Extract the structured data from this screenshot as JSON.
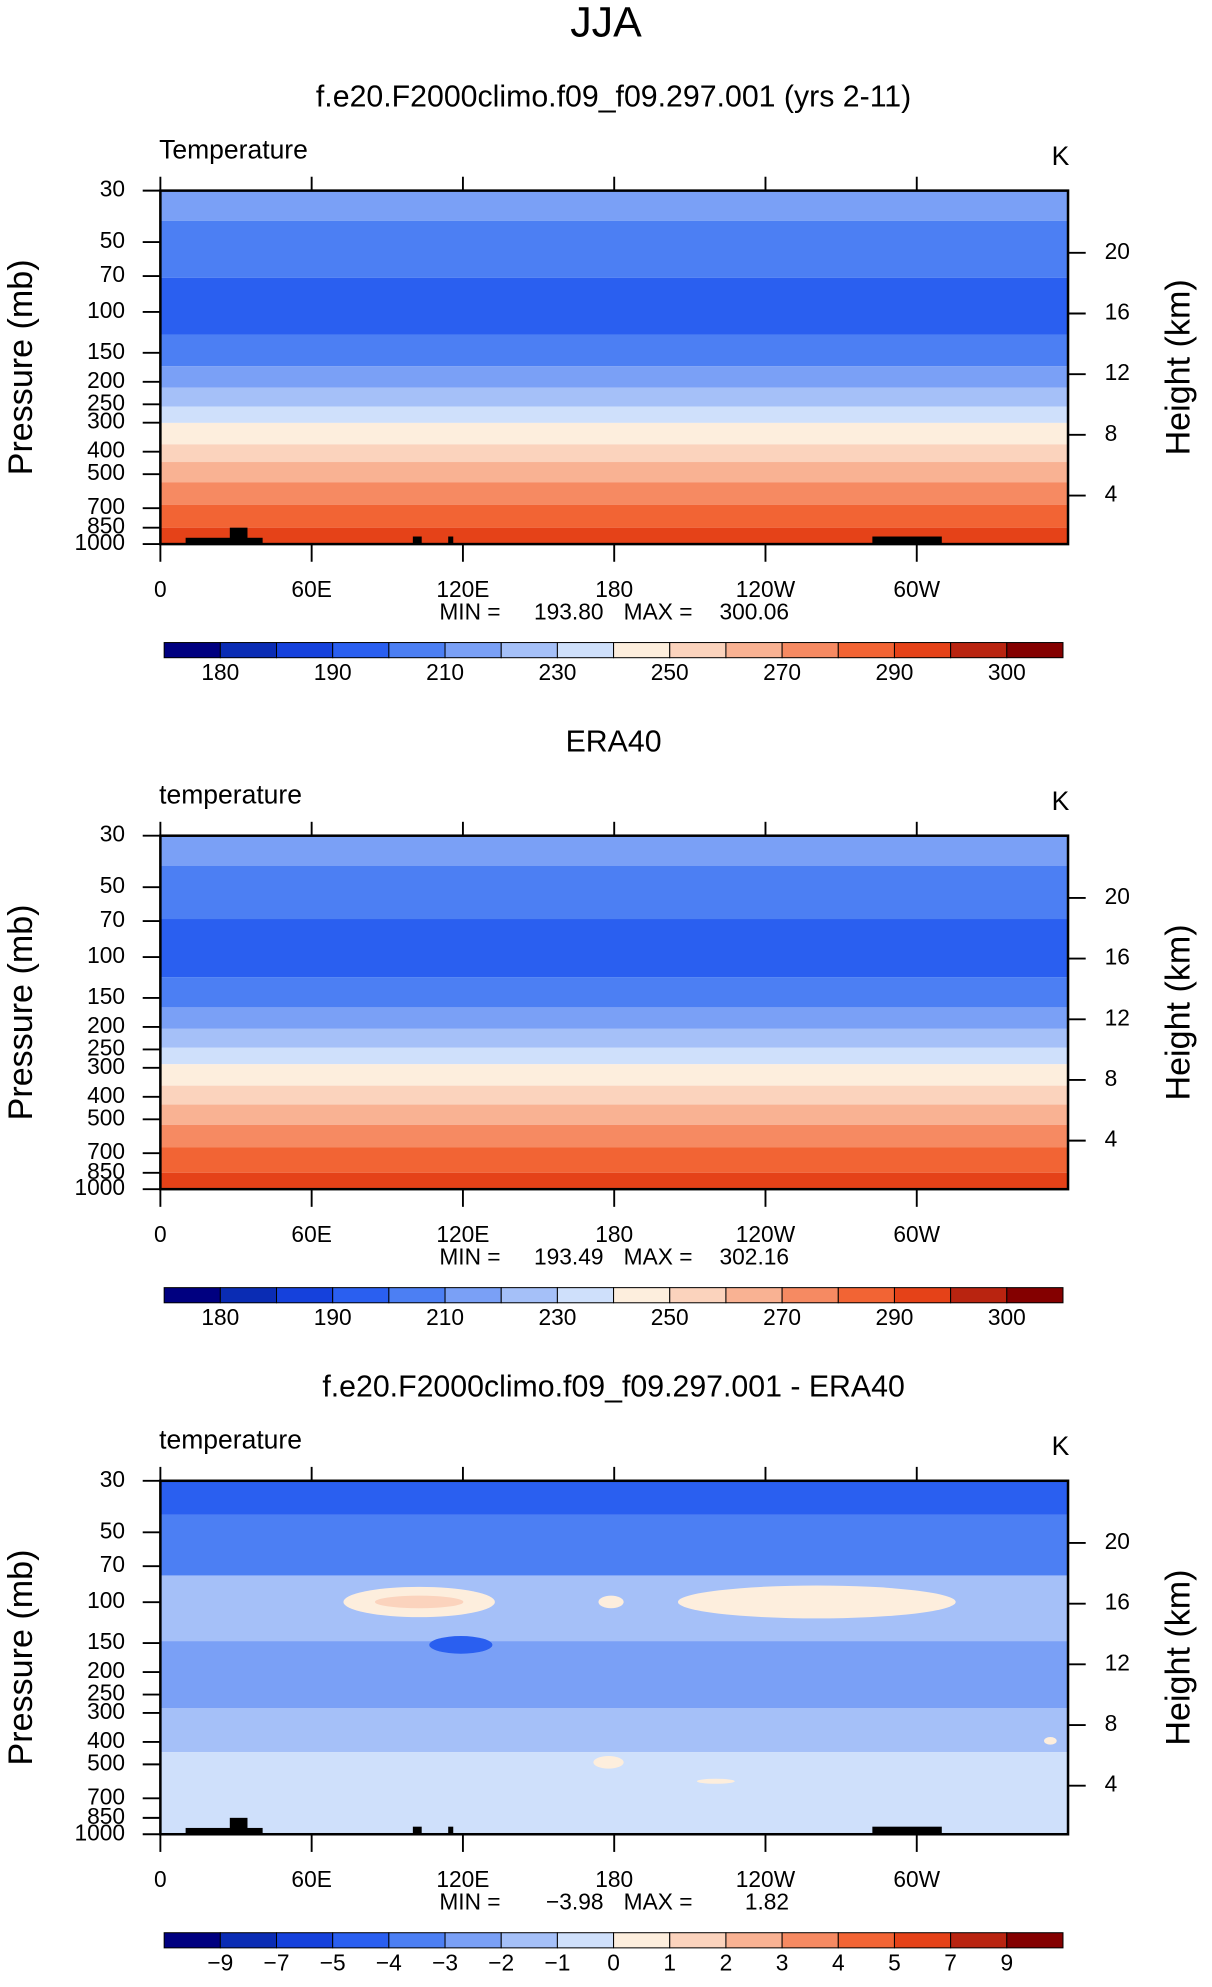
{
  "title": "JJA",
  "colors": [
    "#000080",
    "#0a2cb4",
    "#1541dc",
    "#2a5ff0",
    "#4c7ff3",
    "#7aa0f6",
    "#a5c0f8",
    "#cfe0fb",
    "#fdeedd",
    "#fbd3bd",
    "#f9b293",
    "#f68a62",
    "#f26434",
    "#e54218",
    "#b92410",
    "#840000"
  ],
  "chart_data": [
    {
      "type": "contour",
      "title": "f.e20.F2000climo.f09_f09.297.001 (yrs 2-11)",
      "variable": "Temperature",
      "units": "K",
      "ylabel": "Pressure (mb)",
      "y2label": "Height (km)",
      "y_scale": "log",
      "ylim": [
        1000,
        30
      ],
      "yticks": [
        30,
        50,
        70,
        100,
        150,
        200,
        250,
        300,
        400,
        500,
        700,
        850,
        1000
      ],
      "y2lim": [
        0.8,
        24.1
      ],
      "y2ticks": [
        20,
        16,
        12,
        8,
        4
      ],
      "xlim": [
        0,
        360
      ],
      "xticks": [
        0,
        {
          "value": 60,
          "label": "60E"
        },
        {
          "value": 120,
          "label": "120E"
        },
        180,
        {
          "value": 240,
          "label": "120W"
        },
        {
          "value": 300,
          "label": "60W"
        }
      ],
      "min_label": "MIN =",
      "min": {
        "value": 193.8,
        "label": "193.80"
      },
      "max_label": "MAX =",
      "max": 300.06,
      "colorbar_levels": [
        180,
        null,
        190,
        null,
        210,
        null,
        230,
        null,
        250,
        null,
        270,
        null,
        290,
        null,
        300
      ]
    },
    {
      "type": "contour",
      "title": "ERA40",
      "variable": "temperature",
      "units": "K",
      "ylabel": "Pressure (mb)",
      "y2label": "Height (km)",
      "y_scale": "log",
      "ylim": [
        1000,
        30
      ],
      "yticks": [
        30,
        50,
        70,
        100,
        150,
        200,
        250,
        300,
        400,
        500,
        700,
        850,
        1000
      ],
      "y2lim": [
        0.8,
        24.1
      ],
      "y2ticks": [
        20,
        16,
        12,
        8,
        4
      ],
      "xlim": [
        0,
        360
      ],
      "xticks": [
        0,
        {
          "value": 60,
          "label": "60E"
        },
        {
          "value": 120,
          "label": "120E"
        },
        180,
        {
          "value": 240,
          "label": "120W"
        },
        {
          "value": 300,
          "label": "60W"
        }
      ],
      "min_label": "MIN =",
      "min": 193.49,
      "max_label": "MAX =",
      "max": 302.16,
      "colorbar_levels": [
        180,
        null,
        190,
        null,
        210,
        null,
        230,
        null,
        250,
        null,
        270,
        null,
        290,
        null,
        300
      ]
    },
    {
      "type": "contour",
      "title": "f.e20.F2000climo.f09_f09.297.001 - ERA40",
      "variable": "temperature",
      "units": "K",
      "ylabel": "Pressure (mb)",
      "y2label": "Height (km)",
      "y_scale": "log",
      "ylim": [
        1000,
        30
      ],
      "yticks": [
        30,
        50,
        70,
        100,
        150,
        200,
        250,
        300,
        400,
        500,
        700,
        850,
        1000
      ],
      "y2lim": [
        0.8,
        24.1
      ],
      "y2ticks": [
        20,
        16,
        12,
        8,
        4
      ],
      "xlim": [
        0,
        360
      ],
      "xticks": [
        0,
        {
          "value": 60,
          "label": "60E"
        },
        {
          "value": 120,
          "label": "120E"
        },
        180,
        {
          "value": 240,
          "label": "120W"
        },
        {
          "value": 300,
          "label": "60W"
        }
      ],
      "min_label": "MIN =",
      "min": {
        "value": -3.98,
        "label": "−3.98"
      },
      "max_label": "MAX =",
      "max": 1.82,
      "colorbar_levels": [
        {
          "value": -9,
          "label": "−9"
        },
        {
          "value": -7,
          "label": "−7"
        },
        {
          "value": -5,
          "label": "−5"
        },
        {
          "value": -4,
          "label": "−4"
        },
        {
          "value": -3,
          "label": "−3"
        },
        {
          "value": -2,
          "label": "−2"
        },
        {
          "value": -1,
          "label": "−1"
        },
        0,
        1,
        2,
        3,
        4,
        5,
        7,
        9
      ]
    }
  ]
}
